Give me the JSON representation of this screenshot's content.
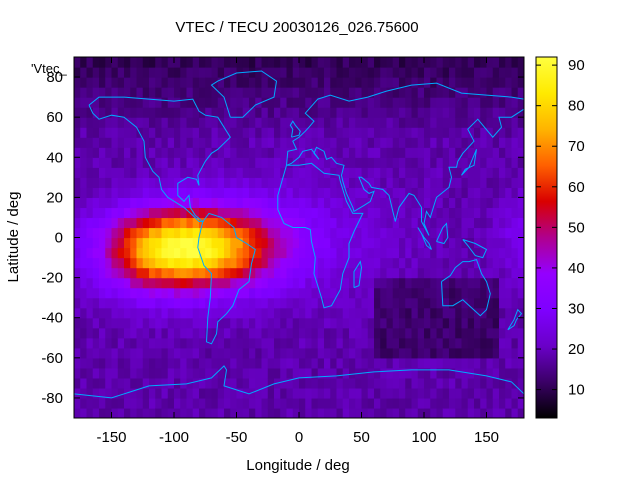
{
  "chart_data": {
    "type": "heatmap",
    "title": "VTEC / TECU 20030126_026.75600",
    "xlabel": "Longitude / deg",
    "ylabel": "Latitude / deg",
    "series_label": "'Vtec_",
    "xlim": [
      -180,
      180
    ],
    "ylim": [
      -90,
      90
    ],
    "x_ticks": [
      -150,
      -100,
      -50,
      0,
      50,
      100,
      150
    ],
    "y_ticks": [
      -80,
      -60,
      -40,
      -20,
      0,
      20,
      40,
      60,
      80
    ],
    "colorbar": {
      "range": [
        3,
        92
      ],
      "ticks": [
        10,
        20,
        30,
        40,
        50,
        60,
        70,
        80,
        90
      ],
      "palette": [
        "#000000",
        "#3b0067",
        "#6a00c8",
        "#7f00ff",
        "#9400ff",
        "#b0008e",
        "#d90000",
        "#ff6000",
        "#ffb400",
        "#ffea00",
        "#ffff40"
      ]
    },
    "grid_resolution_deg": 5,
    "anomaly": {
      "description_values": "equatorial ionization peak over Americas",
      "center_lon": -85,
      "center_lat": -5,
      "peak_value": 90
    },
    "overlay": "coastlines"
  }
}
